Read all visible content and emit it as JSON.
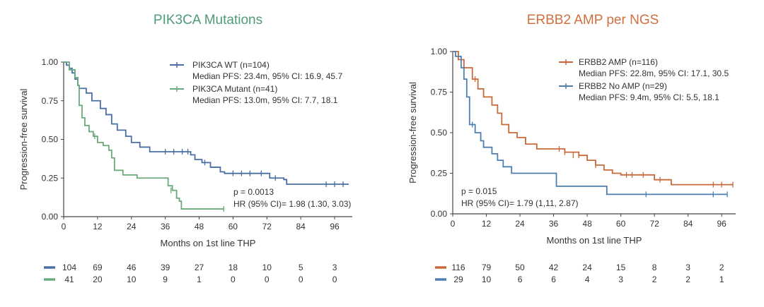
{
  "chart_data": [
    {
      "type": "line",
      "subtype": "kaplan-meier",
      "title": "PIK3CA Mutations",
      "title_color": "#4f9a78",
      "xlabel": "Months on 1st line THP",
      "ylabel": "Progression-free survival",
      "xlim": [
        0,
        102
      ],
      "ylim": [
        0,
        1
      ],
      "xticks": [
        "0",
        "12",
        "24",
        "36",
        "48",
        "60",
        "72",
        "84",
        "96"
      ],
      "yticks": [
        "0.00",
        "0.25",
        "0.50",
        "0.75",
        "1.00"
      ],
      "grid": false,
      "legend_position": "top-right",
      "series": [
        {
          "name": "PIK3CA WT (n=104)",
          "detail": "Median PFS:  23.4m, 95% CI: 16.9, 45.7",
          "color": "#4a6fa5",
          "steps": [
            [
              0,
              1
            ],
            [
              1,
              0.98
            ],
            [
              2,
              0.96
            ],
            [
              3,
              0.93
            ],
            [
              4,
              0.89
            ],
            [
              5,
              0.85
            ],
            [
              5.5,
              0.83
            ],
            [
              8,
              0.8
            ],
            [
              10,
              0.75
            ],
            [
              13,
              0.7
            ],
            [
              15,
              0.66
            ],
            [
              17,
              0.6
            ],
            [
              19,
              0.56
            ],
            [
              22,
              0.52
            ],
            [
              24,
              0.48
            ],
            [
              27,
              0.45
            ],
            [
              30.5,
              0.42
            ],
            [
              45,
              0.4
            ],
            [
              46.5,
              0.37
            ],
            [
              49,
              0.35
            ],
            [
              52,
              0.32
            ],
            [
              55.5,
              0.29
            ],
            [
              57,
              0.28
            ],
            [
              73,
              0.25
            ],
            [
              78,
              0.24
            ],
            [
              79,
              0.21
            ],
            [
              101,
              0.21
            ]
          ],
          "censored": [
            [
              36,
              0.42
            ],
            [
              39,
              0.42
            ],
            [
              42,
              0.42
            ],
            [
              44,
              0.42
            ],
            [
              50,
              0.35
            ],
            [
              60,
              0.28
            ],
            [
              63,
              0.28
            ],
            [
              66,
              0.28
            ],
            [
              70,
              0.28
            ],
            [
              75,
              0.25
            ],
            [
              93,
              0.21
            ],
            [
              96,
              0.21
            ],
            [
              99,
              0.21
            ]
          ],
          "at_risk": [
            104,
            69,
            46,
            39,
            27,
            18,
            10,
            5,
            3
          ]
        },
        {
          "name": "PIK3CA Mutant (n=41)",
          "detail": "Median PFS: 13.0m, 95% CI: 7.7, 18.1",
          "color": "#6aaa7a",
          "steps": [
            [
              0,
              1
            ],
            [
              2,
              0.95
            ],
            [
              4,
              0.9
            ],
            [
              5,
              0.85
            ],
            [
              5.5,
              0.72
            ],
            [
              6.5,
              0.64
            ],
            [
              7.5,
              0.59
            ],
            [
              9,
              0.55
            ],
            [
              10.5,
              0.52
            ],
            [
              12,
              0.48
            ],
            [
              14,
              0.46
            ],
            [
              16,
              0.43
            ],
            [
              17,
              0.38
            ],
            [
              18,
              0.3
            ],
            [
              21,
              0.27
            ],
            [
              26,
              0.25
            ],
            [
              37,
              0.2
            ],
            [
              38.5,
              0.17
            ],
            [
              40,
              0.12
            ],
            [
              41,
              0.1
            ],
            [
              41.7,
              0.05
            ],
            [
              56.7,
              0.05
            ]
          ],
          "censored": [
            [
              11,
              0.52
            ],
            [
              38,
              0.17
            ],
            [
              56.7,
              0.05
            ]
          ],
          "at_risk": [
            41,
            20,
            10,
            9,
            1,
            0,
            0,
            0,
            0
          ]
        }
      ],
      "annotations": [
        "p = 0.0013",
        "HR (95% CI)= 1.98 (1.30, 3.03)"
      ]
    },
    {
      "type": "line",
      "subtype": "kaplan-meier",
      "title": "ERBB2 AMP per NGS",
      "title_color": "#d0703f",
      "xlabel": "Months on 1st line THP",
      "ylabel": "Progression-free survival",
      "xlim": [
        0,
        101
      ],
      "ylim": [
        0,
        1
      ],
      "xticks": [
        "0",
        "12",
        "24",
        "36",
        "48",
        "60",
        "72",
        "84",
        "96"
      ],
      "yticks": [
        "0.00",
        "0.25",
        "0.50",
        "0.75",
        "1.00"
      ],
      "grid": false,
      "legend_position": "top-right",
      "series": [
        {
          "name": "ERBB2 AMP (n=116)",
          "detail": "Median PFS:  22.8m, 95% CI: 17.1, 30.5",
          "color": "#c8693a",
          "steps": [
            [
              0,
              1
            ],
            [
              2,
              0.95
            ],
            [
              4,
              0.9
            ],
            [
              7,
              0.83
            ],
            [
              9,
              0.77
            ],
            [
              11,
              0.72
            ],
            [
              14,
              0.67
            ],
            [
              16,
              0.62
            ],
            [
              17.5,
              0.55
            ],
            [
              20,
              0.5
            ],
            [
              23,
              0.47
            ],
            [
              26,
              0.43
            ],
            [
              30,
              0.4
            ],
            [
              40,
              0.38
            ],
            [
              45,
              0.36
            ],
            [
              48,
              0.33
            ],
            [
              51,
              0.3
            ],
            [
              54,
              0.27
            ],
            [
              57,
              0.25
            ],
            [
              60,
              0.24
            ],
            [
              72,
              0.21
            ],
            [
              78,
              0.18
            ],
            [
              100,
              0.18
            ]
          ],
          "censored": [
            [
              8,
              0.83
            ],
            [
              38,
              0.4
            ],
            [
              40,
              0.38
            ],
            [
              43,
              0.36
            ],
            [
              45,
              0.36
            ],
            [
              51,
              0.3
            ],
            [
              62,
              0.24
            ],
            [
              64,
              0.24
            ],
            [
              68,
              0.24
            ],
            [
              74,
              0.21
            ],
            [
              93,
              0.18
            ],
            [
              96,
              0.18
            ],
            [
              100,
              0.18
            ]
          ],
          "at_risk": [
            116,
            79,
            50,
            42,
            24,
            15,
            8,
            3,
            2
          ]
        },
        {
          "name": "ERBB2 No AMP (n=29)",
          "detail": "Median PFS: 9.4m, 95% CI:  5.5, 18.1",
          "color": "#4d7fb0",
          "steps": [
            [
              0,
              1
            ],
            [
              1,
              0.97
            ],
            [
              3,
              0.9
            ],
            [
              4,
              0.83
            ],
            [
              5,
              0.72
            ],
            [
              6,
              0.55
            ],
            [
              8,
              0.5
            ],
            [
              10,
              0.45
            ],
            [
              11,
              0.41
            ],
            [
              14,
              0.37
            ],
            [
              16,
              0.33
            ],
            [
              18,
              0.29
            ],
            [
              21,
              0.25
            ],
            [
              37,
              0.17
            ],
            [
              55,
              0.12
            ],
            [
              98,
              0.12
            ]
          ],
          "censored": [
            [
              7,
              0.55
            ],
            [
              69,
              0.12
            ],
            [
              93,
              0.12
            ],
            [
              98,
              0.12
            ]
          ],
          "at_risk": [
            29,
            10,
            6,
            6,
            4,
            3,
            2,
            2,
            1
          ]
        }
      ],
      "annotations": [
        "p = 0.015",
        "HR (95% CI)= 1.79 (1,11, 2.87)"
      ]
    }
  ]
}
